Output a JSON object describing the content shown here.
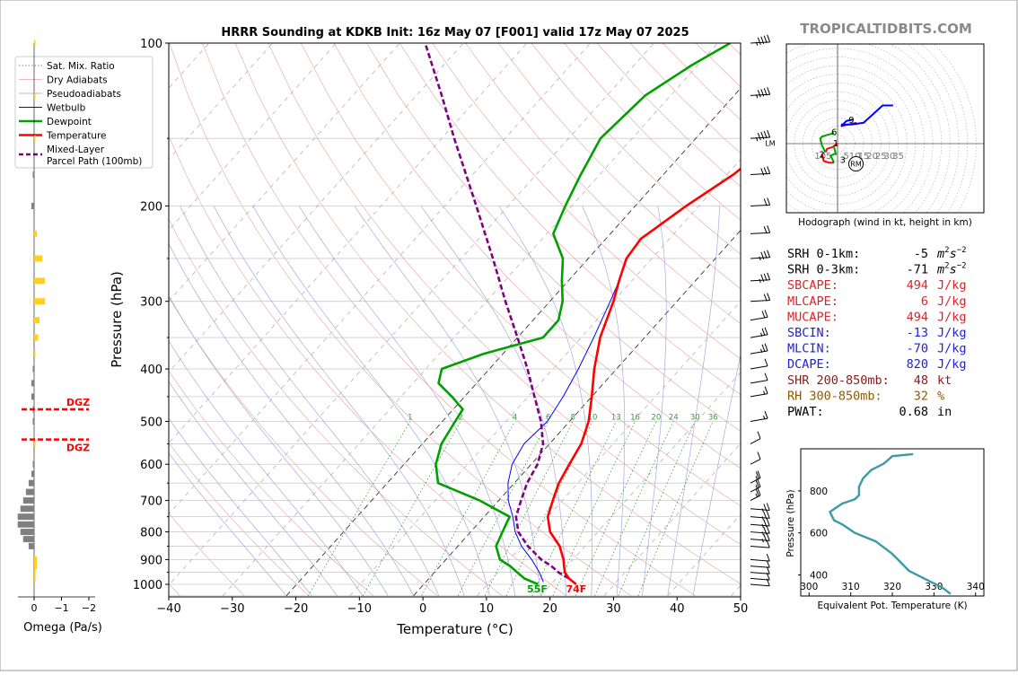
{
  "title": "HRRR Sounding at KDKB Init: 16z May 07 [F001] valid 17z May 07 2025",
  "site_credit": "TROPICALTIDBITS.COM",
  "colors": {
    "temperature": "#ff0000",
    "dewpoint": "#00a000",
    "wetbulb": "#0000ff",
    "parcel": "#800080",
    "brand": "#808080",
    "dgz": "#ff0000",
    "omega_up": "#ffd020",
    "omega_down": "#808080",
    "theta_e": "#3a9aa8",
    "red_text": "#d62728",
    "blue_text": "#2222cc",
    "brown_text": "#8b5a00"
  },
  "chart_data": [
    {
      "type": "line",
      "name": "skew-t",
      "xlabel": "Temperature (°C)",
      "ylabel": "Pressure (hPa)",
      "xlim": [
        -40,
        50
      ],
      "ylim": [
        1050,
        100
      ],
      "y_scale": "log",
      "x_ticks": [
        "−40",
        "−30",
        "−20",
        "−10",
        "0",
        "10",
        "20",
        "30",
        "40",
        "50"
      ],
      "y_ticks": [
        "100",
        "200",
        "300",
        "400",
        "500",
        "600",
        "700",
        "800",
        "900",
        "1000"
      ],
      "legend_placement": "top-left",
      "legend": [
        "Sat. Mix. Ratio",
        "Dry Adiabats",
        "Pseudoadiabats",
        "Wetbulb",
        "Dewpoint",
        "Temperature",
        "Mixed-Layer\nParcel Path (100mb)"
      ],
      "mixing_ratio_labels": [
        "1",
        "2",
        "4",
        "6",
        "8",
        "10",
        "13",
        "16",
        "20",
        "24",
        "30",
        "36"
      ],
      "surface_labels": {
        "dewpoint": "55F",
        "temperature": "74F"
      },
      "series": [
        {
          "name": "Temperature",
          "points": [
            [
              1000,
              24
            ],
            [
              975,
              22
            ],
            [
              950,
              20.5
            ],
            [
              925,
              19.5
            ],
            [
              900,
              18.5
            ],
            [
              850,
              16
            ],
            [
              800,
              12.5
            ],
            [
              750,
              10
            ],
            [
              700,
              8.5
            ],
            [
              650,
              7
            ],
            [
              600,
              6
            ],
            [
              550,
              5
            ],
            [
              500,
              3
            ],
            [
              450,
              0
            ],
            [
              400,
              -3.5
            ],
            [
              350,
              -7
            ],
            [
              300,
              -10
            ],
            [
              275,
              -12
            ],
            [
              250,
              -14
            ],
            [
              230,
              -14.5
            ],
            [
              200,
              -12
            ],
            [
              175,
              -9
            ],
            [
              150,
              -7
            ],
            [
              125,
              -5
            ],
            [
              110,
              -3
            ],
            [
              100,
              -2
            ]
          ]
        },
        {
          "name": "Dewpoint",
          "points": [
            [
              1000,
              18
            ],
            [
              975,
              15
            ],
            [
              950,
              13
            ],
            [
              925,
              11
            ],
            [
              900,
              8.5
            ],
            [
              850,
              6
            ],
            [
              800,
              5
            ],
            [
              750,
              4
            ],
            [
              700,
              -3
            ],
            [
              650,
              -12
            ],
            [
              600,
              -15
            ],
            [
              550,
              -17
            ],
            [
              500,
              -18
            ],
            [
              475,
              -18.5
            ],
            [
              450,
              -22
            ],
            [
              425,
              -26
            ],
            [
              400,
              -27.5
            ],
            [
              375,
              -23
            ],
            [
              350,
              -16
            ],
            [
              325,
              -16
            ],
            [
              300,
              -18
            ],
            [
              275,
              -21
            ],
            [
              250,
              -24
            ],
            [
              225,
              -29
            ],
            [
              200,
              -31
            ],
            [
              175,
              -33
            ],
            [
              150,
              -35
            ],
            [
              125,
              -34
            ],
            [
              110,
              -31
            ],
            [
              100,
              -28
            ]
          ]
        },
        {
          "name": "Wetbulb",
          "points": [
            [
              990,
              18.5
            ],
            [
              950,
              16.5
            ],
            [
              900,
              13.5
            ],
            [
              850,
              10
            ],
            [
              800,
              7
            ],
            [
              750,
              4.5
            ],
            [
              700,
              1.5
            ],
            [
              650,
              -1
            ],
            [
              600,
              -3
            ],
            [
              550,
              -4
            ],
            [
              500,
              -3.5
            ],
            [
              450,
              -4.5
            ],
            [
              400,
              -6
            ],
            [
              350,
              -8
            ],
            [
              300,
              -10.5
            ],
            [
              275,
              -12
            ],
            [
              250,
              -14
            ],
            [
              230,
              -14.5
            ],
            [
              200,
              -12
            ],
            [
              175,
              -9
            ],
            [
              150,
              -7
            ],
            [
              125,
              -5
            ],
            [
              110,
              -3
            ],
            [
              100,
              -2
            ]
          ]
        },
        {
          "name": "Mixed-Layer Parcel Path (100mb)",
          "points": [
            [
              975,
              22
            ],
            [
              950,
              19.5
            ],
            [
              925,
              17.5
            ],
            [
              900,
              15
            ],
            [
              850,
              11
            ],
            [
              800,
              7.5
            ],
            [
              750,
              5
            ],
            [
              700,
              3.5
            ],
            [
              650,
              2
            ],
            [
              600,
              1
            ],
            [
              550,
              -1
            ],
            [
              500,
              -4.5
            ],
            [
              450,
              -9
            ],
            [
              400,
              -14
            ],
            [
              350,
              -20
            ],
            [
              300,
              -27
            ],
            [
              250,
              -35
            ],
            [
              200,
              -45
            ],
            [
              150,
              -58
            ],
            [
              125,
              -66
            ],
            [
              100,
              -76
            ]
          ]
        }
      ],
      "wind_barbs": [
        {
          "p": 1000,
          "spd": 10
        },
        {
          "p": 975,
          "spd": 10
        },
        {
          "p": 950,
          "spd": 10
        },
        {
          "p": 925,
          "spd": 10
        },
        {
          "p": 900,
          "spd": 10
        },
        {
          "p": 850,
          "spd": 10
        },
        {
          "p": 825,
          "spd": 15
        },
        {
          "p": 800,
          "spd": 15
        },
        {
          "p": 775,
          "spd": 15
        },
        {
          "p": 750,
          "spd": 15
        },
        {
          "p": 725,
          "spd": 15
        },
        {
          "p": 700,
          "spd": 15
        },
        {
          "p": 675,
          "spd": 15
        },
        {
          "p": 650,
          "spd": 15
        },
        {
          "p": 600,
          "spd": 10
        },
        {
          "p": 550,
          "spd": 10
        },
        {
          "p": 500,
          "spd": 5
        },
        {
          "p": 450,
          "spd": 5
        },
        {
          "p": 425,
          "spd": 10
        },
        {
          "p": 400,
          "spd": 10
        },
        {
          "p": 375,
          "spd": 15
        },
        {
          "p": 350,
          "spd": 15
        },
        {
          "p": 325,
          "spd": 20
        },
        {
          "p": 300,
          "spd": 20
        },
        {
          "p": 275,
          "spd": 25
        },
        {
          "p": 250,
          "spd": 25
        },
        {
          "p": 225,
          "spd": 20
        },
        {
          "p": 200,
          "spd": 20
        },
        {
          "p": 175,
          "spd": 30
        },
        {
          "p": 150,
          "spd": 35
        },
        {
          "p": 125,
          "spd": 35
        },
        {
          "p": 100,
          "spd": 35
        }
      ],
      "lm_label": "LM"
    },
    {
      "type": "line",
      "name": "omega",
      "xlabel": "Omega (Pa/s)",
      "x_ticks": [
        "0",
        "−1",
        "−2"
      ],
      "dgz_label": "DGZ",
      "dgz_bounds_hpa": [
        475,
        540
      ],
      "values": [
        {
          "p": 975,
          "w": -0.05
        },
        {
          "p": 950,
          "w": -0.05
        },
        {
          "p": 925,
          "w": -0.1
        },
        {
          "p": 900,
          "w": -0.1
        },
        {
          "p": 850,
          "w": 0.2
        },
        {
          "p": 825,
          "w": 0.4
        },
        {
          "p": 800,
          "w": 0.5
        },
        {
          "p": 775,
          "w": 0.6
        },
        {
          "p": 750,
          "w": 0.6
        },
        {
          "p": 725,
          "w": 0.5
        },
        {
          "p": 700,
          "w": 0.4
        },
        {
          "p": 675,
          "w": 0.3
        },
        {
          "p": 650,
          "w": 0.2
        },
        {
          "p": 625,
          "w": 0.1
        },
        {
          "p": 600,
          "w": 0.05
        },
        {
          "p": 550,
          "w": -0.05
        },
        {
          "p": 500,
          "w": 0.05
        },
        {
          "p": 475,
          "w": 0.05
        },
        {
          "p": 450,
          "w": 0.1
        },
        {
          "p": 425,
          "w": 0.1
        },
        {
          "p": 400,
          "w": 0.05
        },
        {
          "p": 375,
          "w": -0.05
        },
        {
          "p": 350,
          "w": -0.15
        },
        {
          "p": 325,
          "w": -0.2
        },
        {
          "p": 300,
          "w": -0.4
        },
        {
          "p": 275,
          "w": -0.4
        },
        {
          "p": 250,
          "w": -0.3
        },
        {
          "p": 225,
          "w": -0.1
        },
        {
          "p": 200,
          "w": 0.1
        },
        {
          "p": 175,
          "w": 0.05
        },
        {
          "p": 150,
          "w": -0.05
        },
        {
          "p": 125,
          "w": -0.05
        },
        {
          "p": 100,
          "w": -0.05
        }
      ]
    },
    {
      "type": "line",
      "name": "hodograph",
      "caption": "Hodograph (wind in kt, height in km)",
      "ring_labels": [
        "10",
        "5",
        "5",
        "10",
        "15",
        "20",
        "25",
        "30",
        "35"
      ],
      "rm_label": "RM",
      "height_labels": [
        {
          "label": "1",
          "u": -1,
          "v": 0.5
        },
        {
          "label": "2",
          "u": -9,
          "v": -6
        },
        {
          "label": "3",
          "u": 3,
          "v": -9
        },
        {
          "label": "6",
          "u": -2,
          "v": 7
        },
        {
          "label": "9",
          "u": 8,
          "v": 14
        }
      ],
      "rm": {
        "u": 7,
        "v": -7
      },
      "segments": [
        {
          "color": "#ff0000",
          "points": [
            [
              0,
              0
            ],
            [
              -3,
              -2
            ],
            [
              -6,
              -3
            ],
            [
              -7,
              -5
            ]
          ]
        },
        {
          "color": "#00a000",
          "points": [
            [
              -7,
              -5
            ],
            [
              -9,
              -1
            ],
            [
              -10,
              3
            ],
            [
              -9,
              4
            ],
            [
              -6,
              5
            ],
            [
              -2,
              6
            ]
          ]
        },
        {
          "color": "#ff0000",
          "points": [
            [
              -9,
              -6
            ],
            [
              -8,
              -10
            ],
            [
              -5,
              -11
            ],
            [
              -2,
              -11
            ]
          ]
        },
        {
          "color": "#00a000",
          "points": [
            [
              -2,
              -11
            ],
            [
              -4,
              -7
            ],
            [
              -2,
              -6
            ],
            [
              -1,
              -6
            ],
            [
              -2,
              -2
            ]
          ]
        },
        {
          "color": "#800080",
          "points": [
            [
              2,
              10
            ],
            [
              6,
              11
            ],
            [
              11,
              12
            ]
          ]
        },
        {
          "color": "#0000ff",
          "points": [
            [
              2,
              10
            ],
            [
              3,
              11
            ],
            [
              5,
              13
            ],
            [
              9,
              14
            ]
          ]
        },
        {
          "color": "#0000ff",
          "points": [
            [
              2,
              11
            ],
            [
              8,
              11
            ],
            [
              15,
              12
            ],
            [
              26,
              22
            ],
            [
              32,
              22
            ]
          ]
        }
      ]
    },
    {
      "type": "line",
      "name": "theta-e",
      "xlabel": "Equivalent Pot. Temperature (K)",
      "ylabel": "Pressure (hPa)",
      "xlim": [
        298,
        342
      ],
      "ylim": [
        1000,
        300
      ],
      "x_ticks": [
        "300",
        "310",
        "320",
        "330",
        "340"
      ],
      "y_ticks": [
        "400",
        "600",
        "800"
      ],
      "points": [
        [
          975,
          325
        ],
        [
          965,
          320
        ],
        [
          930,
          318
        ],
        [
          900,
          315
        ],
        [
          860,
          313
        ],
        [
          820,
          312
        ],
        [
          780,
          312
        ],
        [
          760,
          311
        ],
        [
          740,
          308
        ],
        [
          700,
          305
        ],
        [
          660,
          306
        ],
        [
          640,
          308
        ],
        [
          600,
          311
        ],
        [
          560,
          316
        ],
        [
          500,
          320
        ],
        [
          460,
          322
        ],
        [
          420,
          324
        ],
        [
          380,
          328
        ],
        [
          340,
          332
        ],
        [
          310,
          334
        ]
      ]
    }
  ],
  "indices": [
    {
      "label": "SRH 0-1km:",
      "value": "-5",
      "unit": "m2s-2",
      "color": "#000000"
    },
    {
      "label": "SRH 0-3km:",
      "value": "-71",
      "unit": "m2s-2",
      "color": "#000000"
    },
    {
      "label": "SBCAPE:",
      "value": "494",
      "unit": "J/kg",
      "color": "#d62728"
    },
    {
      "label": "MLCAPE:",
      "value": "6",
      "unit": "J/kg",
      "color": "#d62728"
    },
    {
      "label": "MUCAPE:",
      "value": "494",
      "unit": "J/kg",
      "color": "#d62728"
    },
    {
      "label": "SBCIN:",
      "value": "-13",
      "unit": "J/kg",
      "color": "#2222cc"
    },
    {
      "label": "MLCIN:",
      "value": "-70",
      "unit": "J/kg",
      "color": "#2222cc"
    },
    {
      "label": "DCAPE:",
      "value": "820",
      "unit": "J/kg",
      "color": "#2222cc"
    },
    {
      "label": "SHR 200-850mb:",
      "value": "48",
      "unit": "kt",
      "color": "#8b1a1a"
    },
    {
      "label": "RH 300-850mb:",
      "value": "32",
      "unit": "%",
      "color": "#8b5a00"
    },
    {
      "label": "PWAT:",
      "value": "0.68",
      "unit": "in",
      "color": "#000000"
    }
  ]
}
